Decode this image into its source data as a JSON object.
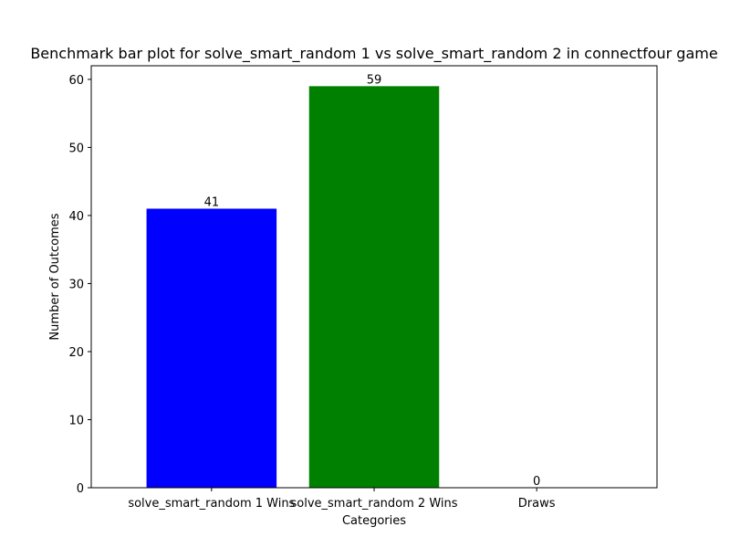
{
  "chart_data": {
    "type": "bar",
    "title": "Benchmark bar plot for solve_smart_random 1 vs solve_smart_random 2 in connectfour game",
    "xlabel": "Categories",
    "ylabel": "Number of Outcomes",
    "categories": [
      "solve_smart_random 1 Wins",
      "solve_smart_random 2 Wins",
      "Draws"
    ],
    "values": [
      41,
      59,
      0
    ],
    "data_labels": [
      "41",
      "59",
      "0"
    ],
    "bar_colors": [
      "#0000ff",
      "#008000",
      "#ff0000"
    ],
    "ylim": [
      0,
      62
    ],
    "yticks": [
      0,
      10,
      20,
      30,
      40,
      50,
      60
    ],
    "grid": false,
    "legend": "none"
  }
}
